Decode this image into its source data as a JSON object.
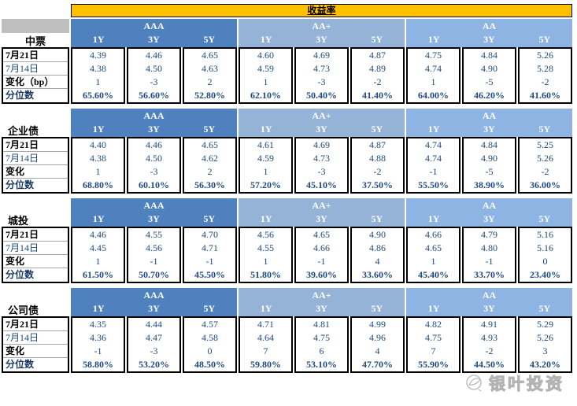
{
  "title": "收益率",
  "ratings": [
    "AAA",
    "AA+",
    "AA"
  ],
  "tenors": [
    "1Y",
    "3Y",
    "5Y"
  ],
  "watermark": "银叶投资",
  "colors": {
    "title_bg": "#FFC000",
    "rating_bg": [
      "#4E81BD",
      "#95B3D7",
      "#8DB4E2"
    ],
    "corner_gray": "#BFBFBF",
    "value_text": "#1F497D"
  },
  "sections": [
    {
      "label": "中票",
      "gray_corner": true,
      "row_labels": [
        "7月21日",
        "7月14日",
        "变化（bp）",
        "分位数"
      ],
      "rows": [
        [
          "4.39",
          "4.46",
          "4.65",
          "4.60",
          "4.69",
          "4.87",
          "4.75",
          "4.84",
          "5.26"
        ],
        [
          "4.38",
          "4.50",
          "4.63",
          "4.59",
          "4.73",
          "4.89",
          "4.74",
          "4.90",
          "5.28"
        ],
        [
          "1",
          "-3",
          "2",
          "1",
          "-3",
          "-2",
          "1",
          "-5",
          "-2"
        ],
        [
          "65.60%",
          "56.60%",
          "52.80%",
          "62.10%",
          "50.40%",
          "41.40%",
          "64.00%",
          "46.20%",
          "41.60%"
        ]
      ]
    },
    {
      "label": "企业债",
      "gray_corner": false,
      "row_labels": [
        "7月21日",
        "7月14日",
        "变化",
        "分位数"
      ],
      "rows": [
        [
          "4.40",
          "4.46",
          "4.65",
          "4.61",
          "4.69",
          "4.87",
          "4.74",
          "4.84",
          "5.25"
        ],
        [
          "4.38",
          "4.50",
          "4.62",
          "4.59",
          "4.73",
          "4.88",
          "4.74",
          "4.90",
          "5.26"
        ],
        [
          "1",
          "-3",
          "2",
          "1",
          "-3",
          "-2",
          "-1",
          "-5",
          "-2"
        ],
        [
          "68.80%",
          "60.10%",
          "56.30%",
          "57.20%",
          "45.10%",
          "37.50%",
          "55.50%",
          "38.90%",
          "36.00%"
        ]
      ]
    },
    {
      "label": "城投",
      "gray_corner": false,
      "row_labels": [
        "7月21日",
        "7月14日",
        "变化",
        "分位数"
      ],
      "rows": [
        [
          "4.46",
          "4.55",
          "4.70",
          "4.56",
          "4.65",
          "4.90",
          "4.66",
          "4.79",
          "5.16"
        ],
        [
          "4.45",
          "4.56",
          "4.71",
          "4.55",
          "4.66",
          "4.86",
          "4.65",
          "4.80",
          "5.16"
        ],
        [
          "1",
          "-1",
          "-1",
          "1",
          "-1",
          "4",
          "1",
          "-1",
          "0"
        ],
        [
          "61.50%",
          "50.70%",
          "45.50%",
          "51.80%",
          "39.60%",
          "33.60%",
          "45.40%",
          "33.70%",
          "23.40%"
        ]
      ]
    },
    {
      "label": "公司债",
      "gray_corner": false,
      "row_labels": [
        "7月21日",
        "7月14日",
        "变化",
        "分位数"
      ],
      "rows": [
        [
          "4.35",
          "4.44",
          "4.57",
          "4.71",
          "4.81",
          "4.99",
          "4.82",
          "4.91",
          "5.29"
        ],
        [
          "4.36",
          "4.47",
          "4.58",
          "4.64",
          "4.75",
          "4.96",
          "4.75",
          "4.93",
          "5.26"
        ],
        [
          "-1",
          "-3",
          "0",
          "7",
          "6",
          "4",
          "7",
          "-2",
          "3"
        ],
        [
          "58.80%",
          "53.20%",
          "48.50%",
          "59.80%",
          "53.10%",
          "47.70%",
          "55.90%",
          "44.50%",
          "43.20%"
        ]
      ]
    }
  ]
}
